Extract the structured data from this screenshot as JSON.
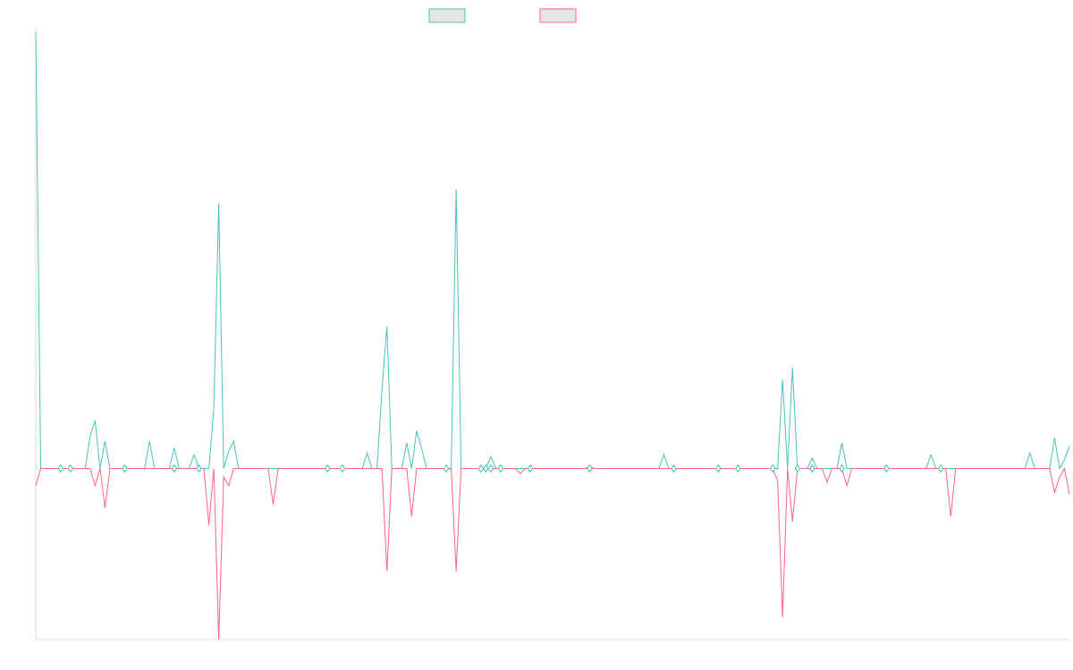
{
  "colors": {
    "series_a": "#4bc0c0",
    "series_b": "#ff6384",
    "legend_fill": "#e6e6e6",
    "axis": "#dedede"
  },
  "legend": {
    "placement": "top-center",
    "entries": [
      {
        "color": "#4bc0c0",
        "fill": "#e6e6e6"
      },
      {
        "color": "#ff6384",
        "fill": "#e6e6e6"
      }
    ]
  },
  "chart_data": {
    "type": "line",
    "x_count": 210,
    "ylim": [
      -1.0,
      2.55
    ],
    "grid": false,
    "series": [
      {
        "color": "#4bc0c0",
        "spikes": [
          [
            0,
            2.55
          ],
          [
            11,
            0.19
          ],
          [
            12,
            0.28
          ],
          [
            14,
            0.16
          ],
          [
            23,
            0.16
          ],
          [
            28,
            0.12
          ],
          [
            32,
            0.08
          ],
          [
            36,
            0.35
          ],
          [
            37,
            1.55
          ],
          [
            39,
            0.1
          ],
          [
            40,
            0.16
          ],
          [
            67,
            0.08
          ],
          [
            67,
            0.09
          ],
          [
            70,
            0.46
          ],
          [
            71,
            0.83
          ],
          [
            75,
            0.15
          ],
          [
            77,
            0.22
          ],
          [
            78,
            0.12
          ],
          [
            85,
            1.63
          ],
          [
            92,
            0.07
          ],
          [
            112,
            0.01
          ],
          [
            127,
            0.08
          ],
          [
            151,
            0.52
          ],
          [
            153,
            0.59
          ],
          [
            157,
            0.06
          ],
          [
            163,
            0.15
          ],
          [
            181,
            0.08
          ],
          [
            201,
            0.09
          ],
          [
            206,
            0.18
          ],
          [
            208,
            0.05
          ],
          [
            209,
            0.13
          ]
        ]
      },
      {
        "color": "#ff6384",
        "spikes": [
          [
            0,
            -0.1
          ],
          [
            12,
            -0.1
          ],
          [
            14,
            -0.23
          ],
          [
            35,
            -0.33
          ],
          [
            37,
            -1.0
          ],
          [
            38,
            -0.05
          ],
          [
            39,
            -0.1
          ],
          [
            48,
            -0.21
          ],
          [
            71,
            -0.6
          ],
          [
            76,
            -0.28
          ],
          [
            85,
            -0.6
          ],
          [
            98,
            -0.03
          ],
          [
            150,
            -0.07
          ],
          [
            151,
            -0.87
          ],
          [
            153,
            -0.31
          ],
          [
            160,
            -0.08
          ],
          [
            164,
            -0.1
          ],
          [
            185,
            -0.28
          ],
          [
            206,
            -0.14
          ],
          [
            207,
            -0.05
          ],
          [
            209,
            -0.15
          ]
        ]
      }
    ],
    "markers": [
      {
        "x": 5,
        "side": "both"
      },
      {
        "x": 7,
        "side": "both"
      },
      {
        "x": 18,
        "side": "both"
      },
      {
        "x": 28,
        "side": "both"
      },
      {
        "x": 33,
        "side": "both"
      },
      {
        "x": 59,
        "side": "both"
      },
      {
        "x": 62,
        "side": "both"
      },
      {
        "x": 83,
        "side": "both"
      },
      {
        "x": 90,
        "side": "both"
      },
      {
        "x": 91,
        "side": "both"
      },
      {
        "x": 92,
        "side": "both"
      },
      {
        "x": 94,
        "side": "both"
      },
      {
        "x": 100,
        "side": "both"
      },
      {
        "x": 112,
        "side": "both"
      },
      {
        "x": 129,
        "side": "both"
      },
      {
        "x": 138,
        "side": "both"
      },
      {
        "x": 142,
        "side": "both"
      },
      {
        "x": 149,
        "side": "both"
      },
      {
        "x": 154,
        "side": "both"
      },
      {
        "x": 157,
        "side": "both"
      },
      {
        "x": 163,
        "side": "both"
      },
      {
        "x": 172,
        "side": "both"
      },
      {
        "x": 183,
        "side": "both"
      }
    ]
  }
}
